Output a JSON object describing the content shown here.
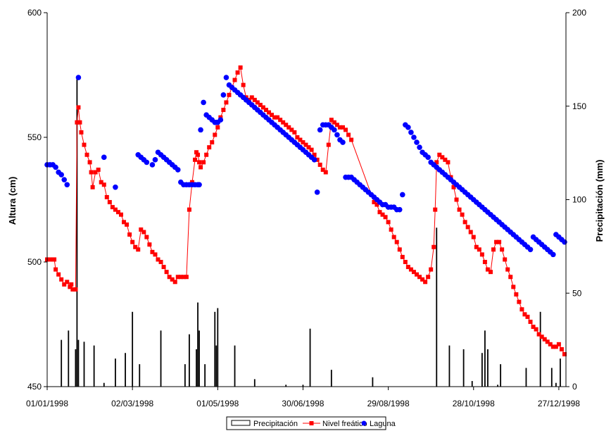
{
  "chart_data": {
    "type": "line",
    "title": "",
    "xlabel": "",
    "ylabel_left": "Altura (cm)",
    "ylabel_right": "Precipitación (mm)",
    "x_ticks": [
      "01/01/1998",
      "02/03/1998",
      "01/05/1998",
      "30/06/1998",
      "29/08/1998",
      "28/10/1998",
      "27/12/1998"
    ],
    "x_tick_days": [
      0,
      60,
      120,
      180,
      240,
      300,
      360
    ],
    "x_range_days": [
      0,
      365
    ],
    "ylim_left": [
      450,
      600
    ],
    "yticks_left": [
      "450",
      "500",
      "550",
      "600"
    ],
    "ylim_right": [
      0,
      200
    ],
    "yticks_right": [
      "0",
      "50",
      "100",
      "150",
      "200"
    ],
    "grid": false,
    "legend_position": "bottom",
    "series": [
      {
        "name": "Precipitación",
        "type": "bar",
        "axis": "right",
        "color": "#000000",
        "x": [
          10,
          15,
          20,
          21,
          22,
          26,
          33,
          40,
          48,
          55,
          60,
          65,
          80,
          97,
          100,
          105,
          106,
          107,
          111,
          118,
          119,
          120,
          132,
          146,
          168,
          180,
          185,
          200,
          229,
          274,
          283,
          293,
          299,
          306,
          308,
          310,
          317,
          319,
          337,
          347,
          355,
          358,
          361
        ],
        "values": [
          25,
          30,
          20,
          165,
          25,
          24,
          22,
          2,
          15,
          18,
          40,
          12,
          30,
          12,
          28,
          20,
          45,
          30,
          12,
          40,
          22,
          42,
          22,
          4,
          1,
          1,
          31,
          9,
          5,
          85,
          22,
          20,
          3,
          18,
          30,
          20,
          1,
          12,
          10,
          40,
          10,
          2,
          15
        ]
      },
      {
        "name": "Nivel freático",
        "type": "line",
        "axis": "left",
        "color": "#ff0000",
        "marker": "square",
        "x": [
          0,
          2,
          4,
          5,
          6,
          8,
          10,
          12,
          14,
          16,
          17,
          18,
          20,
          21,
          22,
          23,
          24,
          26,
          28,
          30,
          31,
          32,
          34,
          36,
          38,
          40,
          42,
          44,
          46,
          48,
          50,
          52,
          54,
          56,
          58,
          60,
          62,
          64,
          66,
          68,
          70,
          72,
          74,
          76,
          78,
          80,
          82,
          84,
          86,
          88,
          90,
          92,
          94,
          96,
          98,
          100,
          102,
          104,
          105,
          106,
          107,
          108,
          110,
          112,
          114,
          116,
          118,
          120,
          122,
          124,
          126,
          128,
          130,
          132,
          134,
          136,
          138,
          140,
          142,
          144,
          146,
          148,
          150,
          152,
          154,
          156,
          158,
          160,
          162,
          164,
          166,
          168,
          170,
          172,
          174,
          176,
          178,
          180,
          182,
          184,
          186,
          188,
          190,
          192,
          194,
          196,
          198,
          200,
          202,
          204,
          206,
          208,
          210,
          212,
          214,
          230,
          232,
          234,
          236,
          238,
          240,
          242,
          244,
          246,
          248,
          250,
          252,
          254,
          256,
          258,
          260,
          262,
          264,
          266,
          268,
          270,
          272,
          273,
          274,
          276,
          278,
          280,
          282,
          284,
          286,
          288,
          290,
          292,
          294,
          296,
          298,
          300,
          302,
          304,
          306,
          308,
          310,
          312,
          314,
          316,
          318,
          320,
          322,
          324,
          326,
          328,
          330,
          332,
          334,
          336,
          338,
          340,
          342,
          344,
          346,
          348,
          350,
          352,
          354,
          356,
          358,
          360,
          362,
          364
        ],
        "values": [
          501,
          501,
          501,
          501,
          497,
          495,
          493,
          491,
          492,
          490,
          491,
          489,
          489,
          556,
          562,
          556,
          552,
          547,
          543,
          540,
          536,
          530,
          536,
          537,
          532,
          531,
          526,
          524,
          522,
          521,
          520,
          519,
          516,
          515,
          511,
          508,
          506,
          505,
          513,
          512,
          510,
          507,
          504,
          503,
          501,
          500,
          498,
          496,
          494,
          493,
          492,
          494,
          494,
          494,
          494,
          521,
          532,
          541,
          544,
          543,
          540,
          538,
          540,
          543,
          546,
          548,
          551,
          554,
          558,
          561,
          564,
          567,
          570,
          573,
          576,
          578,
          571,
          566,
          565,
          566,
          565,
          564,
          563,
          562,
          561,
          560,
          559,
          558,
          558,
          557,
          556,
          555,
          554,
          553,
          552,
          550,
          549,
          548,
          547,
          546,
          545,
          543,
          541,
          539,
          537,
          536,
          547,
          557,
          556,
          555,
          554,
          554,
          553,
          551,
          549,
          524,
          523,
          520,
          519,
          518,
          516,
          513,
          510,
          508,
          505,
          502,
          500,
          498,
          497,
          496,
          495,
          494,
          493,
          492,
          494,
          497,
          506,
          521,
          540,
          543,
          542,
          541,
          540,
          534,
          530,
          525,
          521,
          519,
          516,
          514,
          512,
          510,
          506,
          505,
          503,
          500,
          497,
          496,
          505,
          508,
          508,
          505,
          501,
          497,
          494,
          490,
          487,
          484,
          481,
          479,
          478,
          476,
          474,
          473,
          471,
          470,
          469,
          468,
          467,
          466,
          466,
          467,
          465,
          463
        ]
      },
      {
        "name": "Laguna",
        "type": "scatter",
        "axis": "left",
        "color": "#0000ff",
        "marker": "circle",
        "x": [
          0,
          2,
          4,
          6,
          8,
          10,
          12,
          14,
          22,
          40,
          48,
          64,
          66,
          68,
          70,
          74,
          76,
          78,
          80,
          82,
          84,
          86,
          88,
          90,
          92,
          94,
          96,
          98,
          100,
          102,
          104,
          106,
          107,
          108,
          110,
          112,
          114,
          116,
          118,
          119,
          120,
          122,
          124,
          126,
          128,
          130,
          132,
          134,
          136,
          138,
          140,
          142,
          144,
          146,
          148,
          150,
          152,
          154,
          156,
          158,
          160,
          162,
          164,
          166,
          168,
          170,
          172,
          174,
          176,
          178,
          180,
          182,
          184,
          186,
          188,
          190,
          192,
          194,
          196,
          198,
          200,
          202,
          204,
          206,
          208,
          210,
          212,
          214,
          216,
          218,
          220,
          222,
          224,
          226,
          228,
          230,
          232,
          234,
          236,
          238,
          240,
          242,
          244,
          246,
          248,
          250,
          252,
          254,
          256,
          258,
          260,
          262,
          264,
          266,
          268,
          270,
          272,
          274,
          276,
          278,
          280,
          282,
          284,
          286,
          288,
          290,
          292,
          294,
          296,
          298,
          300,
          302,
          304,
          306,
          308,
          310,
          312,
          314,
          316,
          318,
          320,
          322,
          324,
          326,
          328,
          330,
          332,
          334,
          336,
          338,
          340,
          342,
          344,
          346,
          348,
          350,
          352,
          354,
          356,
          358,
          360,
          362,
          364
        ],
        "values": [
          539,
          539,
          539,
          538,
          536,
          535,
          533,
          531,
          574,
          542,
          530,
          543,
          542,
          541,
          540,
          539,
          541,
          544,
          543,
          542,
          541,
          540,
          539,
          538,
          537,
          532,
          531,
          531,
          531,
          531,
          531,
          531,
          531,
          553,
          564,
          559,
          558,
          557,
          556,
          556,
          556,
          557,
          567,
          574,
          571,
          570,
          569,
          568,
          567,
          566,
          565,
          564,
          563,
          562,
          561,
          560,
          559,
          558,
          557,
          556,
          555,
          554,
          553,
          552,
          551,
          550,
          549,
          548,
          547,
          546,
          545,
          544,
          543,
          542,
          541,
          528,
          553,
          555,
          555,
          555,
          554,
          553,
          551,
          549,
          548,
          534,
          534,
          534,
          533,
          532,
          531,
          530,
          529,
          528,
          527,
          526,
          525,
          524,
          523,
          523,
          522,
          522,
          522,
          521,
          521,
          527,
          555,
          554,
          552,
          550,
          548,
          546,
          544,
          543,
          542,
          540,
          539,
          538,
          537,
          536,
          535,
          534,
          533,
          532,
          531,
          530,
          529,
          528,
          527,
          526,
          525,
          524,
          523,
          522,
          521,
          520,
          519,
          518,
          517,
          516,
          515,
          514,
          513,
          512,
          511,
          510,
          509,
          508,
          507,
          506,
          505,
          510,
          509,
          508,
          507,
          506,
          505,
          504,
          503,
          511,
          510,
          509,
          508
        ]
      }
    ]
  }
}
